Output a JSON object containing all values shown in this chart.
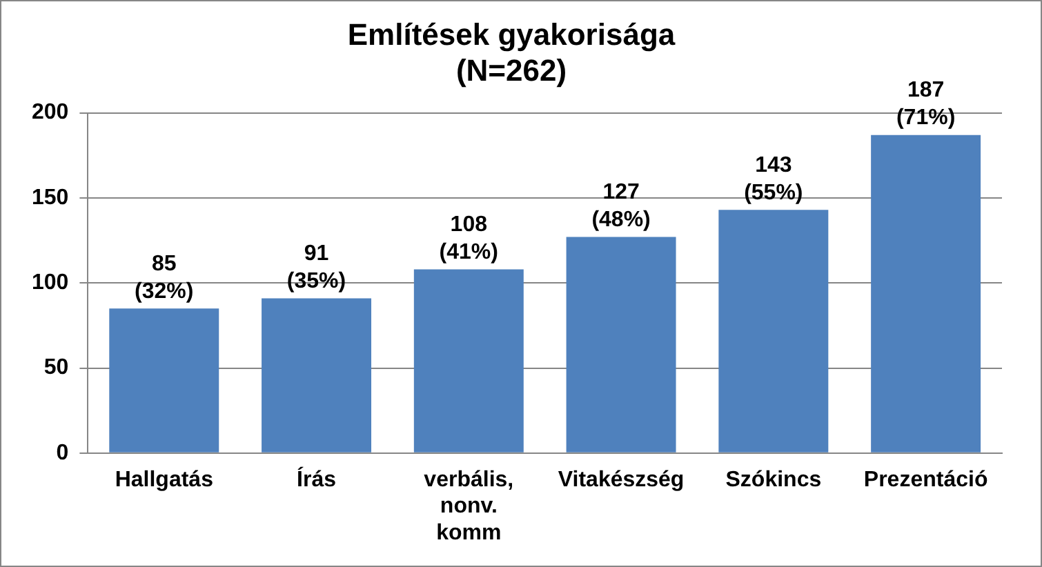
{
  "chart_data": {
    "type": "bar",
    "title": "Említések gyakorisága\n(N=262)",
    "categories": [
      "Hallgatás",
      "Írás",
      "verbális, nonv. komm",
      "Vitakészség",
      "Szókincs",
      "Prezentáció"
    ],
    "values": [
      85,
      91,
      108,
      127,
      143,
      187
    ],
    "value_labels": [
      "85\n(32%)",
      "91\n(35%)",
      "108\n(41%)",
      "127\n(48%)",
      "143\n(55%)",
      "187\n(71%)"
    ],
    "color": "#4f81bd",
    "ylim": [
      0,
      200
    ],
    "yticks": [
      0,
      50,
      100,
      150,
      200
    ],
    "grid": "y",
    "legend": false
  }
}
